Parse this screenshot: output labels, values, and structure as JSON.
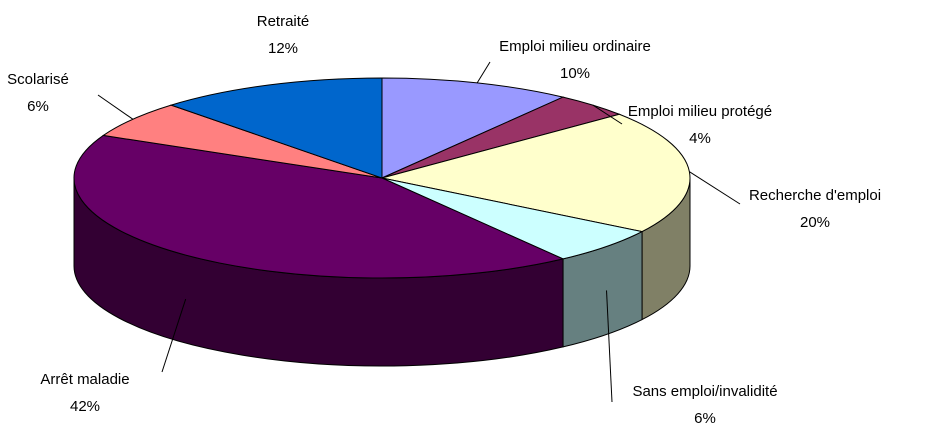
{
  "chart_data": {
    "type": "pie3d",
    "categories": [
      "Emploi milieu ordinaire",
      "Emploi milieu protégé",
      "Recherche d'emploi",
      "Sans emploi/invalidité",
      "Arrêt maladie",
      "Scolarisé",
      "Retraité"
    ],
    "values": [
      10,
      4,
      20,
      6,
      42,
      6,
      12
    ],
    "value_labels": [
      "10%",
      "4%",
      "20%",
      "6%",
      "42%",
      "6%",
      "12%"
    ],
    "colors": [
      "#9999ff",
      "#993366",
      "#ffffcc",
      "#ccffff",
      "#660066",
      "#ff8080",
      "#0066cc"
    ]
  }
}
